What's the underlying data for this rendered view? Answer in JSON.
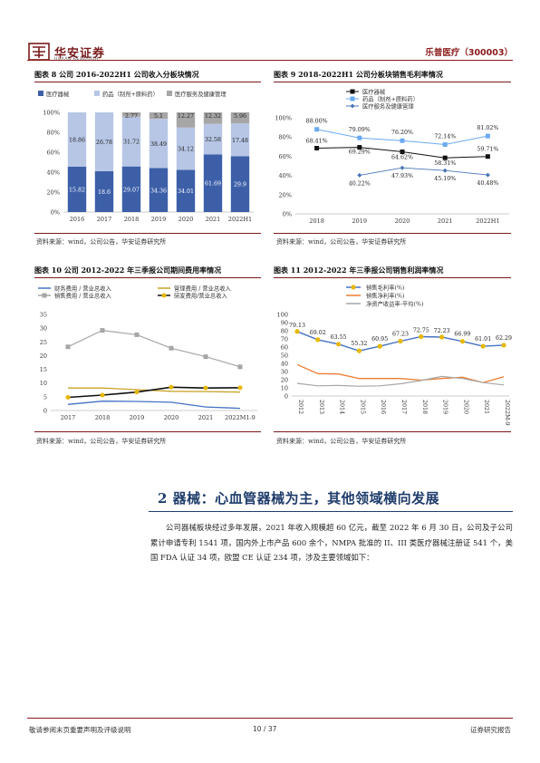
{
  "header": {
    "logo_cn": "华安证券",
    "logo_en": "HUAAN RESEARCH",
    "company": "乐普医疗（300003）"
  },
  "fig8": {
    "caption": "图表 8 公司 2016-2022H1 公司收入分板块情况",
    "source": "资料来源：wind，公司公告，华安证券研究所",
    "chart_data": {
      "type": "bar",
      "categories": [
        "2016",
        "2017",
        "2018",
        "2019",
        "2020",
        "2021",
        "2022H1"
      ],
      "series": [
        {
          "name": "医疗器械",
          "values": [
            15.82,
            18.6,
            29.07,
            34.36,
            34.01,
            61.69,
            29.9
          ],
          "color": "#3c5fa8"
        },
        {
          "name": "药品（制剂+原料药）",
          "values": [
            18.86,
            26.78,
            31.72,
            38.49,
            34.12,
            32.58,
            17.48
          ],
          "color": "#b7c6e5"
        },
        {
          "name": "医疗服务及健康管理",
          "values": [
            null,
            null,
            2.77,
            5.1,
            12.27,
            12.32,
            5.96
          ],
          "color": "#a6a6a6"
        }
      ],
      "yticks": [
        "0%",
        "20%",
        "40%",
        "60%",
        "80%",
        "100%"
      ]
    }
  },
  "fig9": {
    "caption": "图表 9 2018-2022H1 公司分板块销售毛利率情况",
    "source": "资料来源：wind，公司公告，华安证券研究所",
    "chart_data": {
      "type": "line",
      "categories": [
        "2018",
        "2019",
        "2020",
        "2021",
        "2022H1"
      ],
      "series": [
        {
          "name": "医疗器械",
          "values": [
            68.41,
            69.29,
            64.62,
            58.31,
            59.71
          ],
          "labels": [
            "68.41%",
            "69.29%",
            "64.62%",
            "58.31%",
            "59.71%"
          ],
          "color": "#111111"
        },
        {
          "name": "药品（制剂+原料药）",
          "values": [
            88.0,
            79.09,
            76.2,
            72.14,
            81.02
          ],
          "labels": [
            "88.00%",
            "79.09%",
            "76.20%",
            "72.14%",
            "81.02%"
          ],
          "color": "#6aaaf0"
        },
        {
          "name": "医疗服务及健康管理",
          "values": [
            null,
            40.22,
            47.93,
            45.1,
            40.48
          ],
          "labels": [
            "",
            "40.22%",
            "47.93%",
            "45.10%",
            "40.48%"
          ],
          "color": "#4a76b8"
        }
      ],
      "ylim": [
        0,
        100
      ],
      "yticks": [
        "0%",
        "20%",
        "40%",
        "60%",
        "80%",
        "100%"
      ]
    }
  },
  "fig10": {
    "caption": "图表 10 公司 2012-2022 年三季报公司期间费用率情况",
    "source": "资料来源：wind，公司公告，华安证券研究所",
    "chart_data": {
      "type": "line",
      "categories": [
        "2017",
        "2018",
        "2019",
        "2020",
        "2021",
        "2022M1-9"
      ],
      "series": [
        {
          "name": "财务费用 / 营业总收入",
          "values": [
            2.2,
            3.4,
            3.3,
            3.0,
            1.3,
            0.8
          ],
          "color": "#4472c4"
        },
        {
          "name": "管理费用 / 营业总收入",
          "values": [
            8.2,
            8.2,
            7.6,
            7.0,
            6.9,
            6.7
          ],
          "color": "#c9a227"
        },
        {
          "name": "销售费用 / 营业总收入",
          "values": [
            23.2,
            29.2,
            27.6,
            22.7,
            19.6,
            15.9
          ],
          "color": "#a6a6a6"
        },
        {
          "name": "研发费用/营业总收入",
          "values": [
            4.8,
            5.6,
            6.7,
            8.5,
            8.2,
            8.3
          ],
          "color": "#111111"
        }
      ],
      "ylim": [
        0,
        35
      ],
      "yticks": [
        "0",
        "5",
        "10",
        "15",
        "20",
        "25",
        "30",
        "35"
      ]
    }
  },
  "fig11": {
    "caption": "图表 11 2012-2022 年三季报公司销售利润率情况",
    "source": "资料来源：wind，公司公告，华安证券研究所",
    "chart_data": {
      "type": "line",
      "categories": [
        "2012",
        "2013",
        "2014",
        "2015",
        "2016",
        "2017",
        "2018",
        "2019",
        "2020",
        "2021",
        "2022M-9"
      ],
      "series": [
        {
          "name": "销售毛利率(%)",
          "values": [
            79.13,
            69.02,
            63.55,
            55.32,
            60.95,
            67.23,
            72.75,
            72.23,
            66.99,
            61.01,
            62.29
          ],
          "labels": [
            "79.13",
            "69.02",
            "63.55",
            "55.32",
            "60.95",
            "67.23",
            "72.75",
            "72.23",
            "66.99",
            "61.01",
            "62.29"
          ],
          "color": "#4472c4"
        },
        {
          "name": "销售净利率(%)",
          "values": [
            38.5,
            27.5,
            27.0,
            21.5,
            21.5,
            21.5,
            19.5,
            21.5,
            23.0,
            16.5,
            23.5
          ],
          "color": "#ed7d31"
        },
        {
          "name": "净资产收益率-平均(%)",
          "values": [
            15.5,
            12.5,
            13.0,
            12.0,
            12.5,
            15.0,
            19.0,
            24.0,
            21.5,
            16.5,
            13.5
          ],
          "color": "#a6a6a6"
        }
      ],
      "ylim": [
        0,
        100
      ],
      "yticks": [
        "0",
        "10",
        "20",
        "30",
        "40",
        "50",
        "60",
        "70",
        "80",
        "90",
        "100"
      ]
    }
  },
  "section": {
    "title": "2 器械：心血管器械为主，其他领域横向发展",
    "paragraph": "公司器械板块经过多年发展，2021 年收入规模超 60 亿元，截至 2022 年 6 月 30 日，公司及子公司累计申请专利 1541 项，国内外上市产品 600 余个，NMPA 批准的 II、III 类医疗器械注册证 541 个，美国 FDA 认证 34 项，欧盟 CE 认证 234 项，涉及主要领域如下："
  },
  "footer": {
    "disclaimer": "敬请参阅末页重要声明及评级说明",
    "page": "10 / 37",
    "report_type": "证券研究报告"
  }
}
